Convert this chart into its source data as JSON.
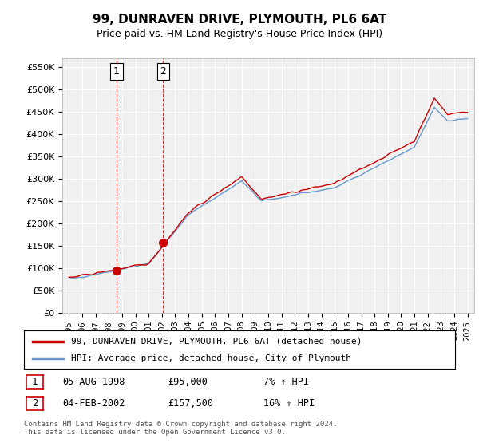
{
  "title": "99, DUNRAVEN DRIVE, PLYMOUTH, PL6 6AT",
  "subtitle": "Price paid vs. HM Land Registry's House Price Index (HPI)",
  "ylabel_ticks": [
    "£0",
    "£50K",
    "£100K",
    "£150K",
    "£200K",
    "£250K",
    "£300K",
    "£350K",
    "£400K",
    "£450K",
    "£500K",
    "£550K"
  ],
  "ylim": [
    0,
    570000
  ],
  "xlim_start": 1995.0,
  "xlim_end": 2025.5,
  "purchase1_date": 1998.585,
  "purchase1_price": 95000,
  "purchase1_label": "1",
  "purchase2_date": 2002.09,
  "purchase2_price": 157500,
  "purchase2_label": "2",
  "vline1_x": 1998.585,
  "vline2_x": 2002.09,
  "legend_line1": "99, DUNRAVEN DRIVE, PLYMOUTH, PL6 6AT (detached house)",
  "legend_line2": "HPI: Average price, detached house, City of Plymouth",
  "table_row1": [
    "1",
    "05-AUG-1998",
    "£95,000",
    "7% ↑ HPI"
  ],
  "table_row2": [
    "2",
    "04-FEB-2002",
    "£157,500",
    "16% ↑ HPI"
  ],
  "footnote": "Contains HM Land Registry data © Crown copyright and database right 2024.\nThis data is licensed under the Open Government Licence v3.0.",
  "red_color": "#cc0000",
  "blue_color": "#6699cc",
  "bg_color": "#ffffff",
  "plot_bg_color": "#f0f0f0",
  "grid_color": "#ffffff",
  "vline_color": "#cc0000"
}
